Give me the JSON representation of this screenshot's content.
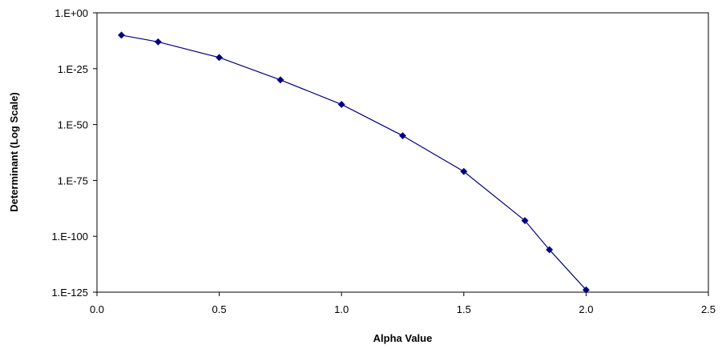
{
  "chart_data": {
    "type": "scatter",
    "title": "",
    "xlabel": "Alpha Value",
    "ylabel": "Determinant (Log Scale)",
    "xlim": [
      0.0,
      2.5
    ],
    "ylim_log10": [
      -125,
      0
    ],
    "y_scale": "log",
    "x_ticks": [
      0.0,
      0.5,
      1.0,
      1.5,
      2.0,
      2.5
    ],
    "x_tick_labels": [
      "0.0",
      "0.5",
      "1.0",
      "1.5",
      "2.0",
      "2.5"
    ],
    "y_ticks_log10": [
      0,
      -25,
      -50,
      -75,
      -100,
      -125
    ],
    "y_tick_labels": [
      "1.E+00",
      "1.E-25",
      "1.E-50",
      "1.E-75",
      "1.E-100",
      "1.E-125"
    ],
    "grid": false,
    "series": [
      {
        "name": "",
        "color": "#000080",
        "marker": "diamond",
        "line": true,
        "x": [
          0.1,
          0.25,
          0.5,
          0.75,
          1.0,
          1.25,
          1.5,
          1.75,
          1.85,
          2.0
        ],
        "y": [
          1e-10,
          1e-13,
          1e-20,
          1e-30,
          1e-41,
          1e-55,
          1e-71,
          1e-93,
          1e-106,
          1e-124
        ]
      }
    ]
  }
}
